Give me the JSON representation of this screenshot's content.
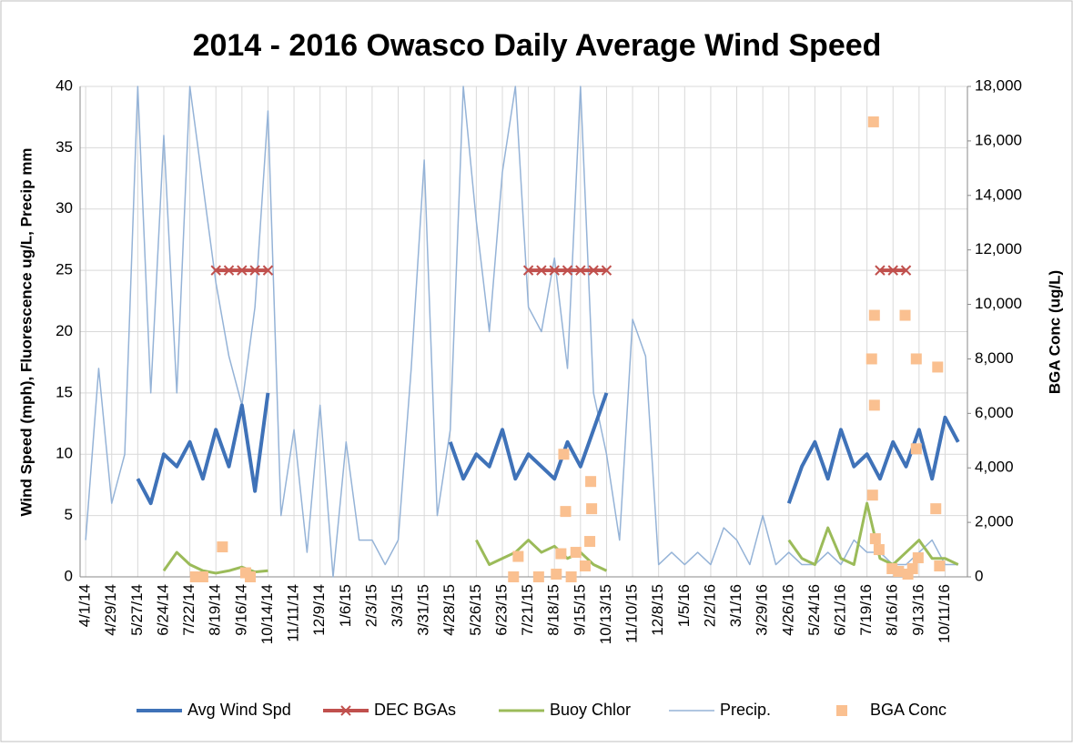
{
  "chart_data": {
    "type": "line",
    "title": "2014 - 2016 Owasco Daily Average Wind Speed",
    "y_label": "Wind Speed (mph), Fluorescence ug/L, Precip mm",
    "y2_label": "BGA Conc (ug/L)",
    "x": [
      "4/1/14",
      "4/15/14",
      "4/29/14",
      "5/13/14",
      "5/27/14",
      "6/10/14",
      "6/24/14",
      "7/8/14",
      "7/22/14",
      "8/5/14",
      "8/19/14",
      "9/2/14",
      "9/16/14",
      "9/30/14",
      "10/14/14",
      "10/28/14",
      "11/11/14",
      "11/25/14",
      "12/9/14",
      "12/23/14",
      "1/6/15",
      "1/20/15",
      "2/3/15",
      "2/17/15",
      "3/3/15",
      "3/17/15",
      "3/31/15",
      "4/14/15",
      "4/28/15",
      "5/12/15",
      "5/26/15",
      "6/9/15",
      "6/23/15",
      "7/7/15",
      "7/21/15",
      "8/4/15",
      "8/18/15",
      "9/1/15",
      "9/15/15",
      "9/29/15",
      "10/13/15",
      "10/27/15",
      "11/10/15",
      "11/24/15",
      "12/8/15",
      "12/22/15",
      "1/5/16",
      "1/19/16",
      "2/2/16",
      "2/16/16",
      "3/1/16",
      "3/15/16",
      "3/29/16",
      "4/12/16",
      "4/26/16",
      "5/10/16",
      "5/24/16",
      "6/7/16",
      "6/21/16",
      "7/5/16",
      "7/19/16",
      "8/2/16",
      "8/16/16",
      "8/30/16",
      "9/13/16",
      "9/27/16",
      "10/11/16",
      "10/25/16"
    ],
    "xlim": [
      "3/26/14",
      "11/4/16"
    ],
    "xticks": [
      "4/1/14",
      "4/29/14",
      "5/27/14",
      "6/24/14",
      "7/22/14",
      "8/19/14",
      "9/16/14",
      "10/14/14",
      "11/11/14",
      "12/9/14",
      "1/6/15",
      "2/3/15",
      "3/3/15",
      "3/31/15",
      "4/28/15",
      "5/26/15",
      "6/23/15",
      "7/21/15",
      "8/18/15",
      "9/15/15",
      "10/13/15",
      "11/10/15",
      "12/8/15",
      "1/5/16",
      "2/2/16",
      "3/1/16",
      "3/29/16",
      "4/26/16",
      "5/24/16",
      "6/21/16",
      "7/19/16",
      "8/16/16",
      "9/13/16",
      "10/11/16"
    ],
    "ylim": [
      0,
      40
    ],
    "yticks": [
      0,
      5,
      10,
      15,
      20,
      25,
      30,
      35,
      40
    ],
    "y2lim": [
      0,
      18000
    ],
    "y2ticks": [
      0,
      {
        "value": 2000,
        "label": "2,000"
      },
      {
        "value": 4000,
        "label": "4,000"
      },
      {
        "value": 6000,
        "label": "6,000"
      },
      {
        "value": 8000,
        "label": "8,000"
      },
      {
        "value": 10000,
        "label": "10,000"
      },
      {
        "value": 12000,
        "label": "12,000"
      },
      {
        "value": 14000,
        "label": "14,000"
      },
      {
        "value": 16000,
        "label": "16,000"
      },
      {
        "value": 18000,
        "label": "18,000"
      }
    ],
    "grid": true,
    "legend": "bottom",
    "series": [
      {
        "name": "Avg Wind Spd",
        "color": "#3f72b8",
        "type": "line",
        "values": [
          null,
          null,
          null,
          null,
          8,
          6,
          10,
          9,
          11,
          8,
          12,
          9,
          14,
          7,
          15,
          null,
          null,
          null,
          null,
          null,
          null,
          null,
          null,
          null,
          null,
          null,
          null,
          null,
          11,
          8,
          10,
          9,
          12,
          8,
          10,
          9,
          8,
          11,
          9,
          12,
          15,
          null,
          null,
          null,
          null,
          null,
          null,
          null,
          null,
          null,
          null,
          null,
          null,
          null,
          6,
          9,
          11,
          8,
          12,
          9,
          10,
          8,
          11,
          9,
          12,
          8,
          13,
          11
        ]
      },
      {
        "name": "DEC BGAs",
        "color": "#c0504d",
        "type": "line",
        "marker": "x",
        "values": [
          null,
          null,
          null,
          null,
          null,
          null,
          null,
          null,
          null,
          null,
          25,
          25,
          25,
          25,
          25,
          null,
          null,
          null,
          null,
          null,
          null,
          null,
          null,
          null,
          null,
          null,
          null,
          null,
          null,
          null,
          null,
          null,
          null,
          null,
          25,
          25,
          25,
          25,
          25,
          25,
          25,
          null,
          null,
          null,
          null,
          null,
          null,
          null,
          null,
          null,
          null,
          null,
          null,
          null,
          null,
          null,
          null,
          null,
          null,
          null,
          null,
          25,
          25,
          25,
          null,
          null,
          null,
          null
        ]
      },
      {
        "name": "Buoy Chlor",
        "color": "#9bbb59",
        "type": "line",
        "values": [
          null,
          null,
          null,
          null,
          null,
          null,
          0.5,
          2,
          1,
          0.5,
          0.3,
          0.5,
          0.8,
          0.4,
          0.5,
          null,
          null,
          null,
          null,
          null,
          null,
          null,
          null,
          null,
          null,
          null,
          null,
          null,
          null,
          null,
          3,
          1,
          1.5,
          2,
          3,
          2,
          2.5,
          1.5,
          2,
          1,
          0.5,
          null,
          null,
          null,
          null,
          null,
          null,
          null,
          null,
          null,
          null,
          null,
          null,
          null,
          3,
          1.5,
          1,
          4,
          1.5,
          1,
          6,
          1.5,
          1,
          2,
          3,
          1.5,
          1.5,
          1
        ]
      },
      {
        "name": "Precip.",
        "color": "#95b3d7",
        "type": "line",
        "values": [
          3,
          17,
          6,
          10,
          40,
          15,
          36,
          15,
          40,
          32,
          24,
          18,
          14,
          22,
          38,
          5,
          12,
          2,
          14,
          0,
          11,
          3,
          3,
          1,
          3,
          17,
          34,
          5,
          12,
          40,
          29,
          20,
          33,
          40,
          22,
          20,
          26,
          17,
          40,
          15,
          10,
          3,
          21,
          18,
          1,
          2,
          1,
          2,
          1,
          4,
          3,
          1,
          5,
          1,
          2,
          1,
          1,
          2,
          1,
          3,
          2,
          2,
          1,
          1,
          2,
          3,
          1,
          1
        ]
      },
      {
        "name": "BGA Conc",
        "color": "#fac090",
        "type": "scatter",
        "marker": "square",
        "axis": "y2",
        "x": [
          "7/28/14",
          "8/1/14",
          "8/5/14",
          "8/26/14",
          "9/20/14",
          "9/25/14",
          "7/5/15",
          "7/10/15",
          "8/1/15",
          "8/20/15",
          "8/25/15",
          "8/28/15",
          "8/30/15",
          "9/5/15",
          "9/10/15",
          "9/20/15",
          "9/25/15",
          "9/26/15",
          "9/27/15",
          "7/24/16",
          "7/25/16",
          "7/26/16",
          "7/27/16",
          "7/27/16",
          "7/28/16",
          "8/1/16",
          "8/15/16",
          "8/22/16",
          "8/29/16",
          "9/1/16",
          "9/6/16",
          "9/10/16",
          "9/10/16",
          "9/12/16",
          "10/1/16",
          "10/3/16",
          "10/5/16"
        ],
        "values": [
          0,
          0,
          0,
          1100,
          150,
          0,
          0,
          750,
          0,
          100,
          850,
          4500,
          2400,
          0,
          900,
          400,
          1300,
          3500,
          2500,
          8000,
          3000,
          16700,
          9600,
          6300,
          1400,
          1000,
          300,
          200,
          9600,
          100,
          300,
          8000,
          4700,
          700,
          2500,
          7700,
          400
        ]
      }
    ]
  }
}
